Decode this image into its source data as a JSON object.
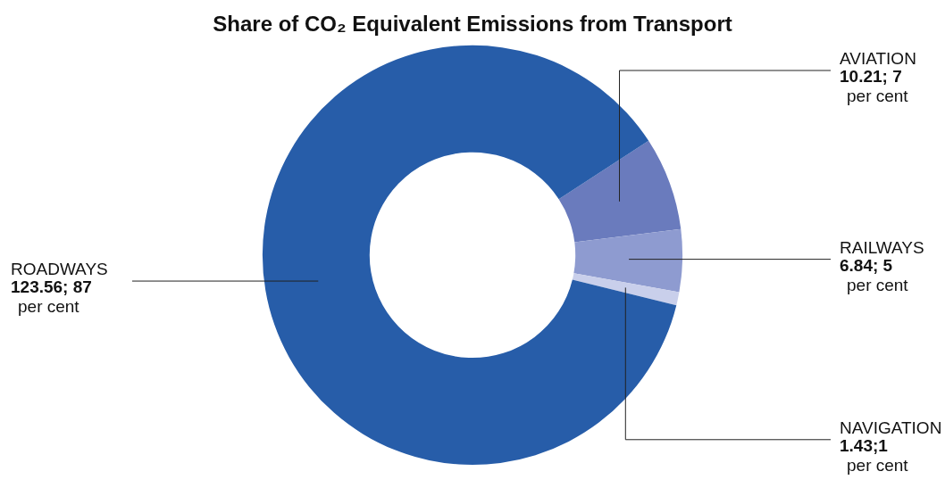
{
  "chart_data": {
    "type": "donut",
    "title": "Share of CO₂ Equivalent Emissions from Transport",
    "categories": [
      "AVIATION",
      "RAILWAYS",
      "NAVIGATION",
      "ROADWAYS"
    ],
    "values": [
      10.21,
      6.84,
      1.43,
      123.56
    ],
    "colors": [
      "#6a7bbd",
      "#8e9bd0",
      "#c9cfeb",
      "#275da9"
    ],
    "value_labels": [
      "10.21; 7\nper cent",
      "6.84; 5\nper cent",
      "1.43;1\nper cent",
      "123.56; 87\nper cent"
    ]
  }
}
